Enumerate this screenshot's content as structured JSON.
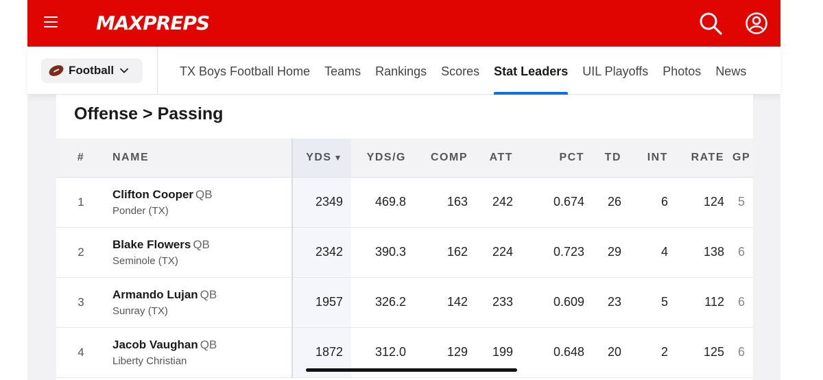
{
  "header": {
    "logo_text": "MAXPREPS",
    "menu_icon": "hamburger-menu-icon",
    "search_icon": "search-icon",
    "account_icon": "account-icon",
    "brand_color": "#e10500"
  },
  "subnav": {
    "sport_label": "Football",
    "links": [
      {
        "label": "TX Boys Football Home",
        "active": false
      },
      {
        "label": "Teams",
        "active": false
      },
      {
        "label": "Rankings",
        "active": false
      },
      {
        "label": "Scores",
        "active": false
      },
      {
        "label": "Stat Leaders",
        "active": true
      },
      {
        "label": "UIL Playoffs",
        "active": false
      },
      {
        "label": "Photos",
        "active": false
      },
      {
        "label": "News",
        "active": false
      }
    ],
    "accent_color": "#0d6ff0"
  },
  "card": {
    "title": "Offense > Passing"
  },
  "table": {
    "columns": [
      "#",
      "NAME",
      "YDS",
      "YDS/G",
      "COMP",
      "ATT",
      "PCT",
      "TD",
      "INT",
      "RATE",
      "GP"
    ],
    "sort_indicator": "▼",
    "rows": [
      {
        "rank": "1",
        "name": "Clifton Cooper",
        "pos": "QB",
        "school": "Ponder (TX)",
        "yds": "2349",
        "ydsg": "469.8",
        "comp": "163",
        "att": "242",
        "pct": "0.674",
        "td": "26",
        "int": "6",
        "rate": "124",
        "gp": "5"
      },
      {
        "rank": "2",
        "name": "Blake Flowers",
        "pos": "QB",
        "school": "Seminole (TX)",
        "yds": "2342",
        "ydsg": "390.3",
        "comp": "162",
        "att": "224",
        "pct": "0.723",
        "td": "29",
        "int": "4",
        "rate": "138",
        "gp": "6"
      },
      {
        "rank": "3",
        "name": "Armando Lujan",
        "pos": "QB",
        "school": "Sunray (TX)",
        "yds": "1957",
        "ydsg": "326.2",
        "comp": "142",
        "att": "233",
        "pct": "0.609",
        "td": "23",
        "int": "5",
        "rate": "112",
        "gp": "6"
      },
      {
        "rank": "4",
        "name": "Jacob Vaughan",
        "pos": "QB",
        "school": "Liberty Christian",
        "yds": "1872",
        "ydsg": "312.0",
        "comp": "129",
        "att": "199",
        "pct": "0.648",
        "td": "20",
        "int": "2",
        "rate": "125",
        "gp": "6"
      }
    ]
  }
}
